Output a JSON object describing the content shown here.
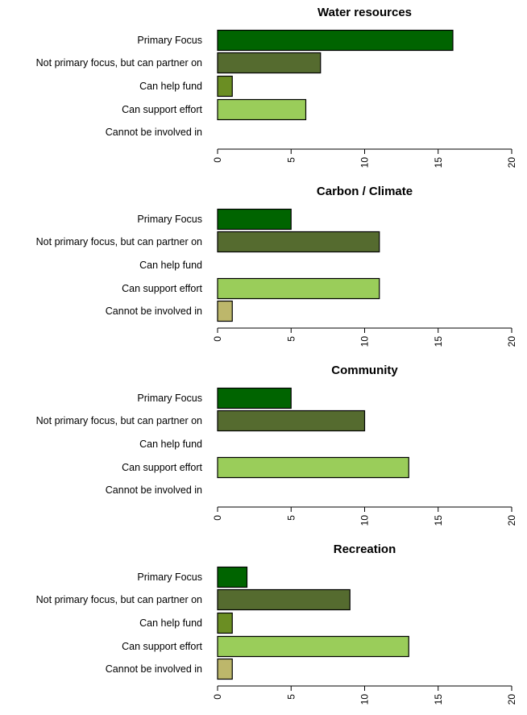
{
  "chart_data": [
    {
      "type": "bar",
      "orientation": "horizontal",
      "title": "Water resources",
      "categories": [
        "Primary Focus",
        "Not primary focus, but can partner on",
        "Can help fund",
        "Can support effort",
        "Cannot be involved in"
      ],
      "values": [
        16,
        7,
        1,
        6,
        0
      ],
      "xlim": [
        0,
        20
      ],
      "xticks": [
        0,
        5,
        10,
        15,
        20
      ],
      "colors": [
        "#006400",
        "#556b2f",
        "#6b8e23",
        "#9acd5a",
        "#bdb76b"
      ],
      "grid": false
    },
    {
      "type": "bar",
      "orientation": "horizontal",
      "title": "Carbon  / Climate",
      "categories": [
        "Primary Focus",
        "Not primary focus, but can partner on",
        "Can help fund",
        "Can support effort",
        "Cannot be involved in"
      ],
      "values": [
        5,
        11,
        0,
        11,
        1
      ],
      "xlim": [
        0,
        20
      ],
      "xticks": [
        0,
        5,
        10,
        15,
        20
      ],
      "colors": [
        "#006400",
        "#556b2f",
        "#6b8e23",
        "#9acd5a",
        "#bdb76b"
      ],
      "grid": false
    },
    {
      "type": "bar",
      "orientation": "horizontal",
      "title": "Community",
      "categories": [
        "Primary Focus",
        "Not primary focus, but can partner on",
        "Can help fund",
        "Can support effort",
        "Cannot be involved in"
      ],
      "values": [
        5,
        10,
        0,
        13,
        0
      ],
      "xlim": [
        0,
        20
      ],
      "xticks": [
        0,
        5,
        10,
        15,
        20
      ],
      "colors": [
        "#006400",
        "#556b2f",
        "#6b8e23",
        "#9acd5a",
        "#bdb76b"
      ],
      "grid": false
    },
    {
      "type": "bar",
      "orientation": "horizontal",
      "title": "Recreation",
      "categories": [
        "Primary Focus",
        "Not primary focus, but can partner on",
        "Can help fund",
        "Can support effort",
        "Cannot be involved in"
      ],
      "values": [
        2,
        9,
        1,
        13,
        1
      ],
      "xlim": [
        0,
        20
      ],
      "xticks": [
        0,
        5,
        10,
        15,
        20
      ],
      "colors": [
        "#006400",
        "#556b2f",
        "#6b8e23",
        "#9acd5a",
        "#bdb76b"
      ],
      "grid": false
    }
  ]
}
